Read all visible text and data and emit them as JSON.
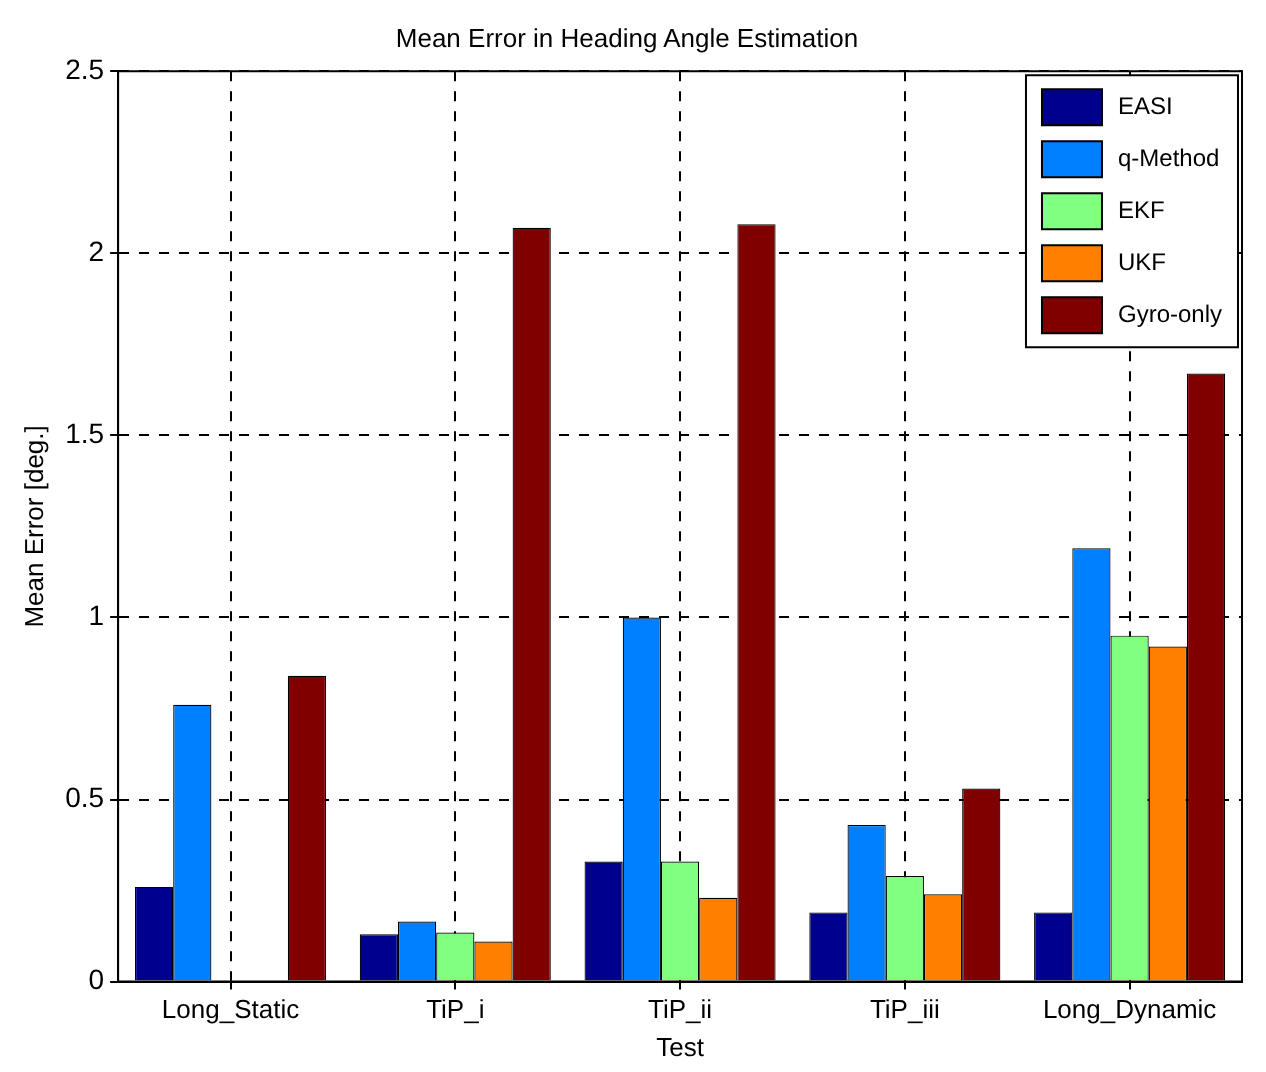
{
  "chart_data": {
    "type": "bar",
    "title": "Mean Error in Heading Angle Estimation",
    "xlabel": "Test",
    "ylabel": "Mean Error [deg.]",
    "categories": [
      "Long_Static",
      "TiP_i",
      "TiP_ii",
      "TiP_iii",
      "Long_Dynamic"
    ],
    "series": [
      {
        "name": "EASI",
        "color": "#00008f",
        "values": [
          0.26,
          0.13,
          0.33,
          0.19,
          0.19
        ]
      },
      {
        "name": "q-Method",
        "color": "#0080ff",
        "values": [
          0.76,
          0.165,
          1.0,
          0.43,
          1.19
        ]
      },
      {
        "name": "EKF",
        "color": "#80ff80",
        "values": [
          null,
          0.135,
          0.33,
          0.29,
          0.95
        ]
      },
      {
        "name": "UKF",
        "color": "#ff8000",
        "values": [
          null,
          0.11,
          0.23,
          0.24,
          0.92
        ]
      },
      {
        "name": "Gyro-only",
        "color": "#800000",
        "values": [
          0.84,
          2.07,
          2.08,
          0.53,
          1.67
        ]
      }
    ],
    "ylim": [
      0,
      2.5
    ],
    "yticks": [
      0,
      0.5,
      1,
      1.5,
      2,
      2.5
    ],
    "grid": true,
    "legend": "top right"
  }
}
